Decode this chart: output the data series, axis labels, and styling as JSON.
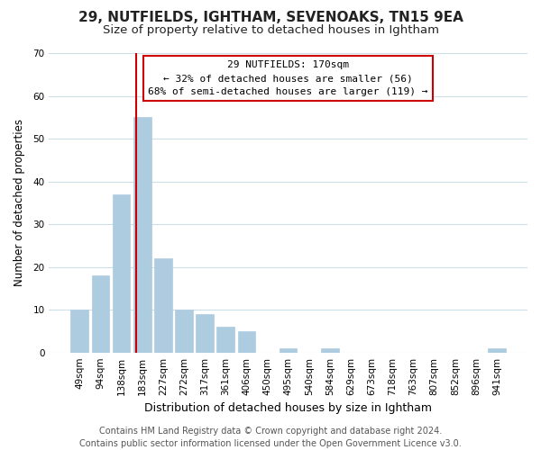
{
  "title1": "29, NUTFIELDS, IGHTHAM, SEVENOAKS, TN15 9EA",
  "title2": "Size of property relative to detached houses in Ightham",
  "xlabel": "Distribution of detached houses by size in Ightham",
  "ylabel": "Number of detached properties",
  "bar_color": "#aecce0",
  "bar_edge_color": "#aecce0",
  "categories": [
    "49sqm",
    "94sqm",
    "138sqm",
    "183sqm",
    "227sqm",
    "272sqm",
    "317sqm",
    "361sqm",
    "406sqm",
    "450sqm",
    "495sqm",
    "540sqm",
    "584sqm",
    "629sqm",
    "673sqm",
    "718sqm",
    "763sqm",
    "807sqm",
    "852sqm",
    "896sqm",
    "941sqm"
  ],
  "values": [
    10,
    18,
    37,
    55,
    22,
    10,
    9,
    6,
    5,
    0,
    1,
    0,
    1,
    0,
    0,
    0,
    0,
    0,
    0,
    0,
    1
  ],
  "ylim": [
    0,
    70
  ],
  "yticks": [
    0,
    10,
    20,
    30,
    40,
    50,
    60,
    70
  ],
  "vline_x": 2.7,
  "vline_color": "#cc0000",
  "annotation_title": "29 NUTFIELDS: 170sqm",
  "annotation_line1": "← 32% of detached houses are smaller (56)",
  "annotation_line2": "68% of semi-detached houses are larger (119) →",
  "annotation_box_color": "#ffffff",
  "annotation_box_edge": "#cc0000",
  "footer1": "Contains HM Land Registry data © Crown copyright and database right 2024.",
  "footer2": "Contains public sector information licensed under the Open Government Licence v3.0.",
  "bg_color": "#ffffff",
  "grid_color": "#ccdfe8",
  "title1_fontsize": 11,
  "title2_fontsize": 9.5,
  "xlabel_fontsize": 9,
  "ylabel_fontsize": 8.5,
  "tick_fontsize": 7.5,
  "footer_fontsize": 7
}
